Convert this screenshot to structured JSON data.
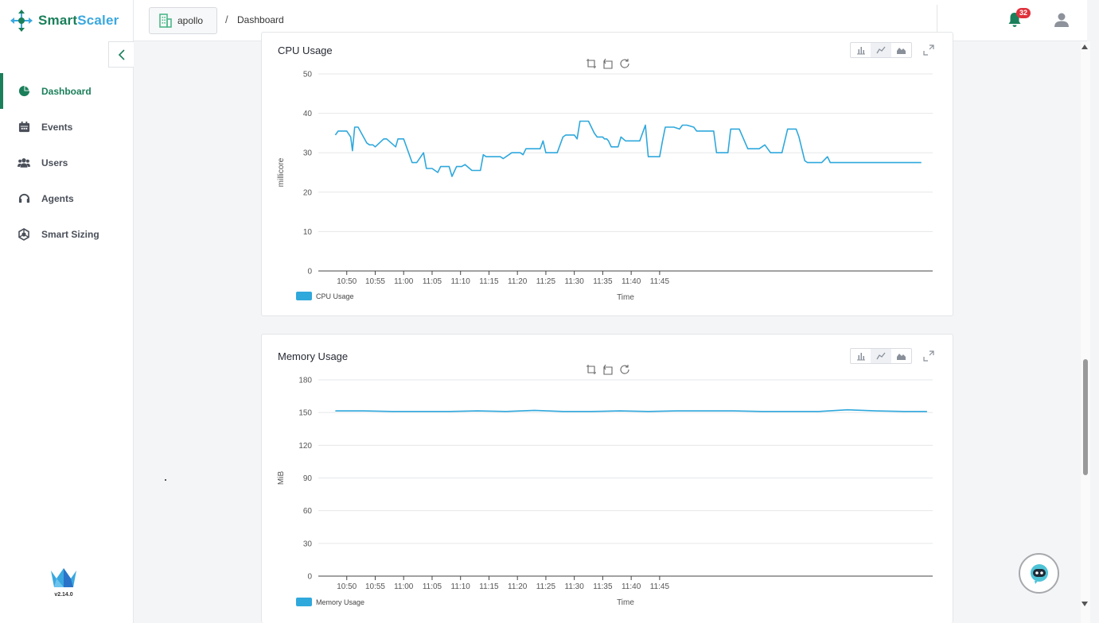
{
  "app": {
    "name_part1": "Smart",
    "name_part2": "Scaler",
    "version": "v2.14.0"
  },
  "sidebar": {
    "items": [
      {
        "label": "Dashboard",
        "icon": "pie-chart-icon",
        "active": true
      },
      {
        "label": "Events",
        "icon": "calendar-icon",
        "active": false
      },
      {
        "label": "Users",
        "icon": "users-icon",
        "active": false
      },
      {
        "label": "Agents",
        "icon": "headset-icon",
        "active": false
      },
      {
        "label": "Smart Sizing",
        "icon": "smart-sizing-icon",
        "active": false
      }
    ]
  },
  "header": {
    "workspace": "apollo",
    "separator": "/",
    "page": "Dashboard",
    "notifications_count": "32"
  },
  "colors": {
    "brand_green": "#1a7f5a",
    "brand_blue": "#3aa8df",
    "series": "#2fa8dc",
    "badge": "#e0313b"
  },
  "chart_data": [
    {
      "type": "line",
      "title": "CPU Usage",
      "xlabel": "Time",
      "ylabel": "millicore",
      "ylim": [
        0,
        50
      ],
      "yticks": [
        0,
        10,
        20,
        30,
        40,
        50
      ],
      "xticks": [
        "10:50",
        "10:55",
        "11:00",
        "11:05",
        "11:10",
        "11:15",
        "11:20",
        "11:25",
        "11:30",
        "11:35",
        "11:40",
        "11:45"
      ],
      "grid": true,
      "legend": "bottom-left",
      "series": [
        {
          "name": "CPU Usage",
          "x_minutes_after_1045": [
            3.0,
            3.5,
            5.0,
            5.7,
            6.0,
            6.4,
            7.0,
            8.5,
            9.0,
            9.6,
            10.0,
            11.5,
            12.0,
            13.6,
            14.0,
            14.4,
            15.0,
            16.5,
            16.9,
            17.3,
            18.5,
            19.0,
            19.5,
            20.0,
            21.0,
            21.5,
            22.0,
            23.0,
            23.5,
            24.3,
            24.9,
            25.2,
            25.8,
            27.0,
            27.3,
            28.5,
            29.0,
            29.5,
            30.0,
            32.0,
            32.5,
            33.5,
            34.0,
            35.5,
            36.0,
            36.5,
            37.0,
            38.5,
            39.0,
            39.5,
            40.0,
            40.5,
            41.5,
            42.0,
            43.0,
            43.5,
            45.0,
            45.5,
            46.0,
            47.0,
            47.5,
            48.5,
            49.0,
            50.0,
            50.3,
            50.7,
            51.0,
            51.5,
            52.5,
            52.7,
            53.2,
            54.0,
            55.0,
            56.5,
            57.5,
            58.0,
            58.5,
            59.5,
            60.0,
            60.5,
            61.0,
            62.0,
            62.5,
            63.5,
            64.0,
            64.8,
            66.0,
            66.5,
            67.5,
            68.0,
            69.5,
            70.0,
            70.5,
            71.5,
            72.0,
            72.5,
            73.5,
            74.0,
            75.5,
            76.0,
            77.0,
            77.5,
            78.5,
            79.5,
            80.0,
            80.5,
            81.5,
            82.5,
            83.0,
            84.0,
            84.5,
            85.5,
            86.0,
            86.5,
            88.0,
            88.5,
            89.5,
            90.0,
            91.0,
            91.5,
            92.5,
            93.0,
            93.5,
            94.0,
            95.0,
            96.5,
            97.0,
            98.0,
            98.5,
            99.5,
            100.0,
            101.0,
            101.5,
            102.0,
            103.0,
            104.0,
            104.5,
            105.5,
            106.0
          ],
          "values": [
            34.5,
            35.5,
            35.5,
            34.0,
            30.5,
            36.5,
            36.5,
            32.5,
            32.0,
            32.0,
            31.5,
            33.5,
            33.5,
            31.5,
            33.5,
            33.5,
            33.5,
            27.5,
            27.5,
            27.5,
            30.0,
            26.0,
            26.0,
            26.0,
            25.0,
            26.5,
            26.5,
            26.5,
            24.0,
            26.5,
            26.5,
            26.5,
            27.0,
            25.5,
            25.5,
            25.5,
            29.5,
            29.0,
            29.0,
            29.0,
            28.5,
            29.5,
            30.0,
            30.0,
            29.5,
            31.0,
            31.0,
            31.0,
            31.0,
            33.0,
            30.0,
            30.0,
            30.0,
            30.0,
            34.0,
            34.5,
            34.5,
            33.5,
            38.0,
            38.0,
            38.0,
            35.0,
            34.0,
            34.0,
            33.5,
            33.5,
            33.0,
            31.5,
            31.5,
            31.5,
            34.0,
            33.0,
            33.0,
            33.0,
            37.0,
            29.0,
            29.0,
            29.0,
            29.0,
            33.0,
            36.5,
            36.5,
            36.5,
            36.0,
            37.0,
            37.0,
            36.5,
            35.5,
            35.5,
            35.5,
            35.5,
            30.0,
            30.0,
            30.0,
            30.0,
            36.0,
            36.0,
            36.0,
            31.0,
            31.0,
            31.0,
            31.0,
            32.0,
            30.0,
            30.0,
            30.0,
            30.0,
            36.0,
            36.0,
            36.0,
            34.0,
            28.0,
            27.5,
            27.5,
            27.5,
            27.5,
            29.0,
            27.5,
            27.5,
            27.5,
            27.5,
            27.5,
            27.5,
            27.5,
            27.5,
            27.5,
            27.5,
            27.5,
            27.5,
            27.5,
            27.5,
            27.5,
            27.5,
            27.5,
            27.5,
            27.5,
            27.5,
            27.5,
            27.5
          ]
        }
      ]
    },
    {
      "type": "line",
      "title": "Memory Usage",
      "xlabel": "Time",
      "ylabel": "MiB",
      "ylim": [
        0,
        180
      ],
      "yticks": [
        0,
        30,
        60,
        90,
        120,
        150,
        180
      ],
      "xticks": [
        "10:50",
        "10:55",
        "11:00",
        "11:05",
        "11:10",
        "11:15",
        "11:20",
        "11:25",
        "11:30",
        "11:35",
        "11:40",
        "11:45"
      ],
      "grid": true,
      "legend": "bottom-left",
      "series": [
        {
          "name": "Memory Usage",
          "x_minutes_after_1045": [
            3,
            8,
            13,
            18,
            23,
            28,
            33,
            38,
            43,
            48,
            53,
            58,
            63,
            68,
            73,
            78,
            83,
            88,
            93,
            98,
            103,
            107
          ],
          "values": [
            151.5,
            151.5,
            151.0,
            151.0,
            151.0,
            151.5,
            151.0,
            152.0,
            151.0,
            151.0,
            151.5,
            151.0,
            151.5,
            151.5,
            151.5,
            151.0,
            151.0,
            151.0,
            152.5,
            151.5,
            151.0,
            151.0
          ]
        }
      ]
    }
  ]
}
